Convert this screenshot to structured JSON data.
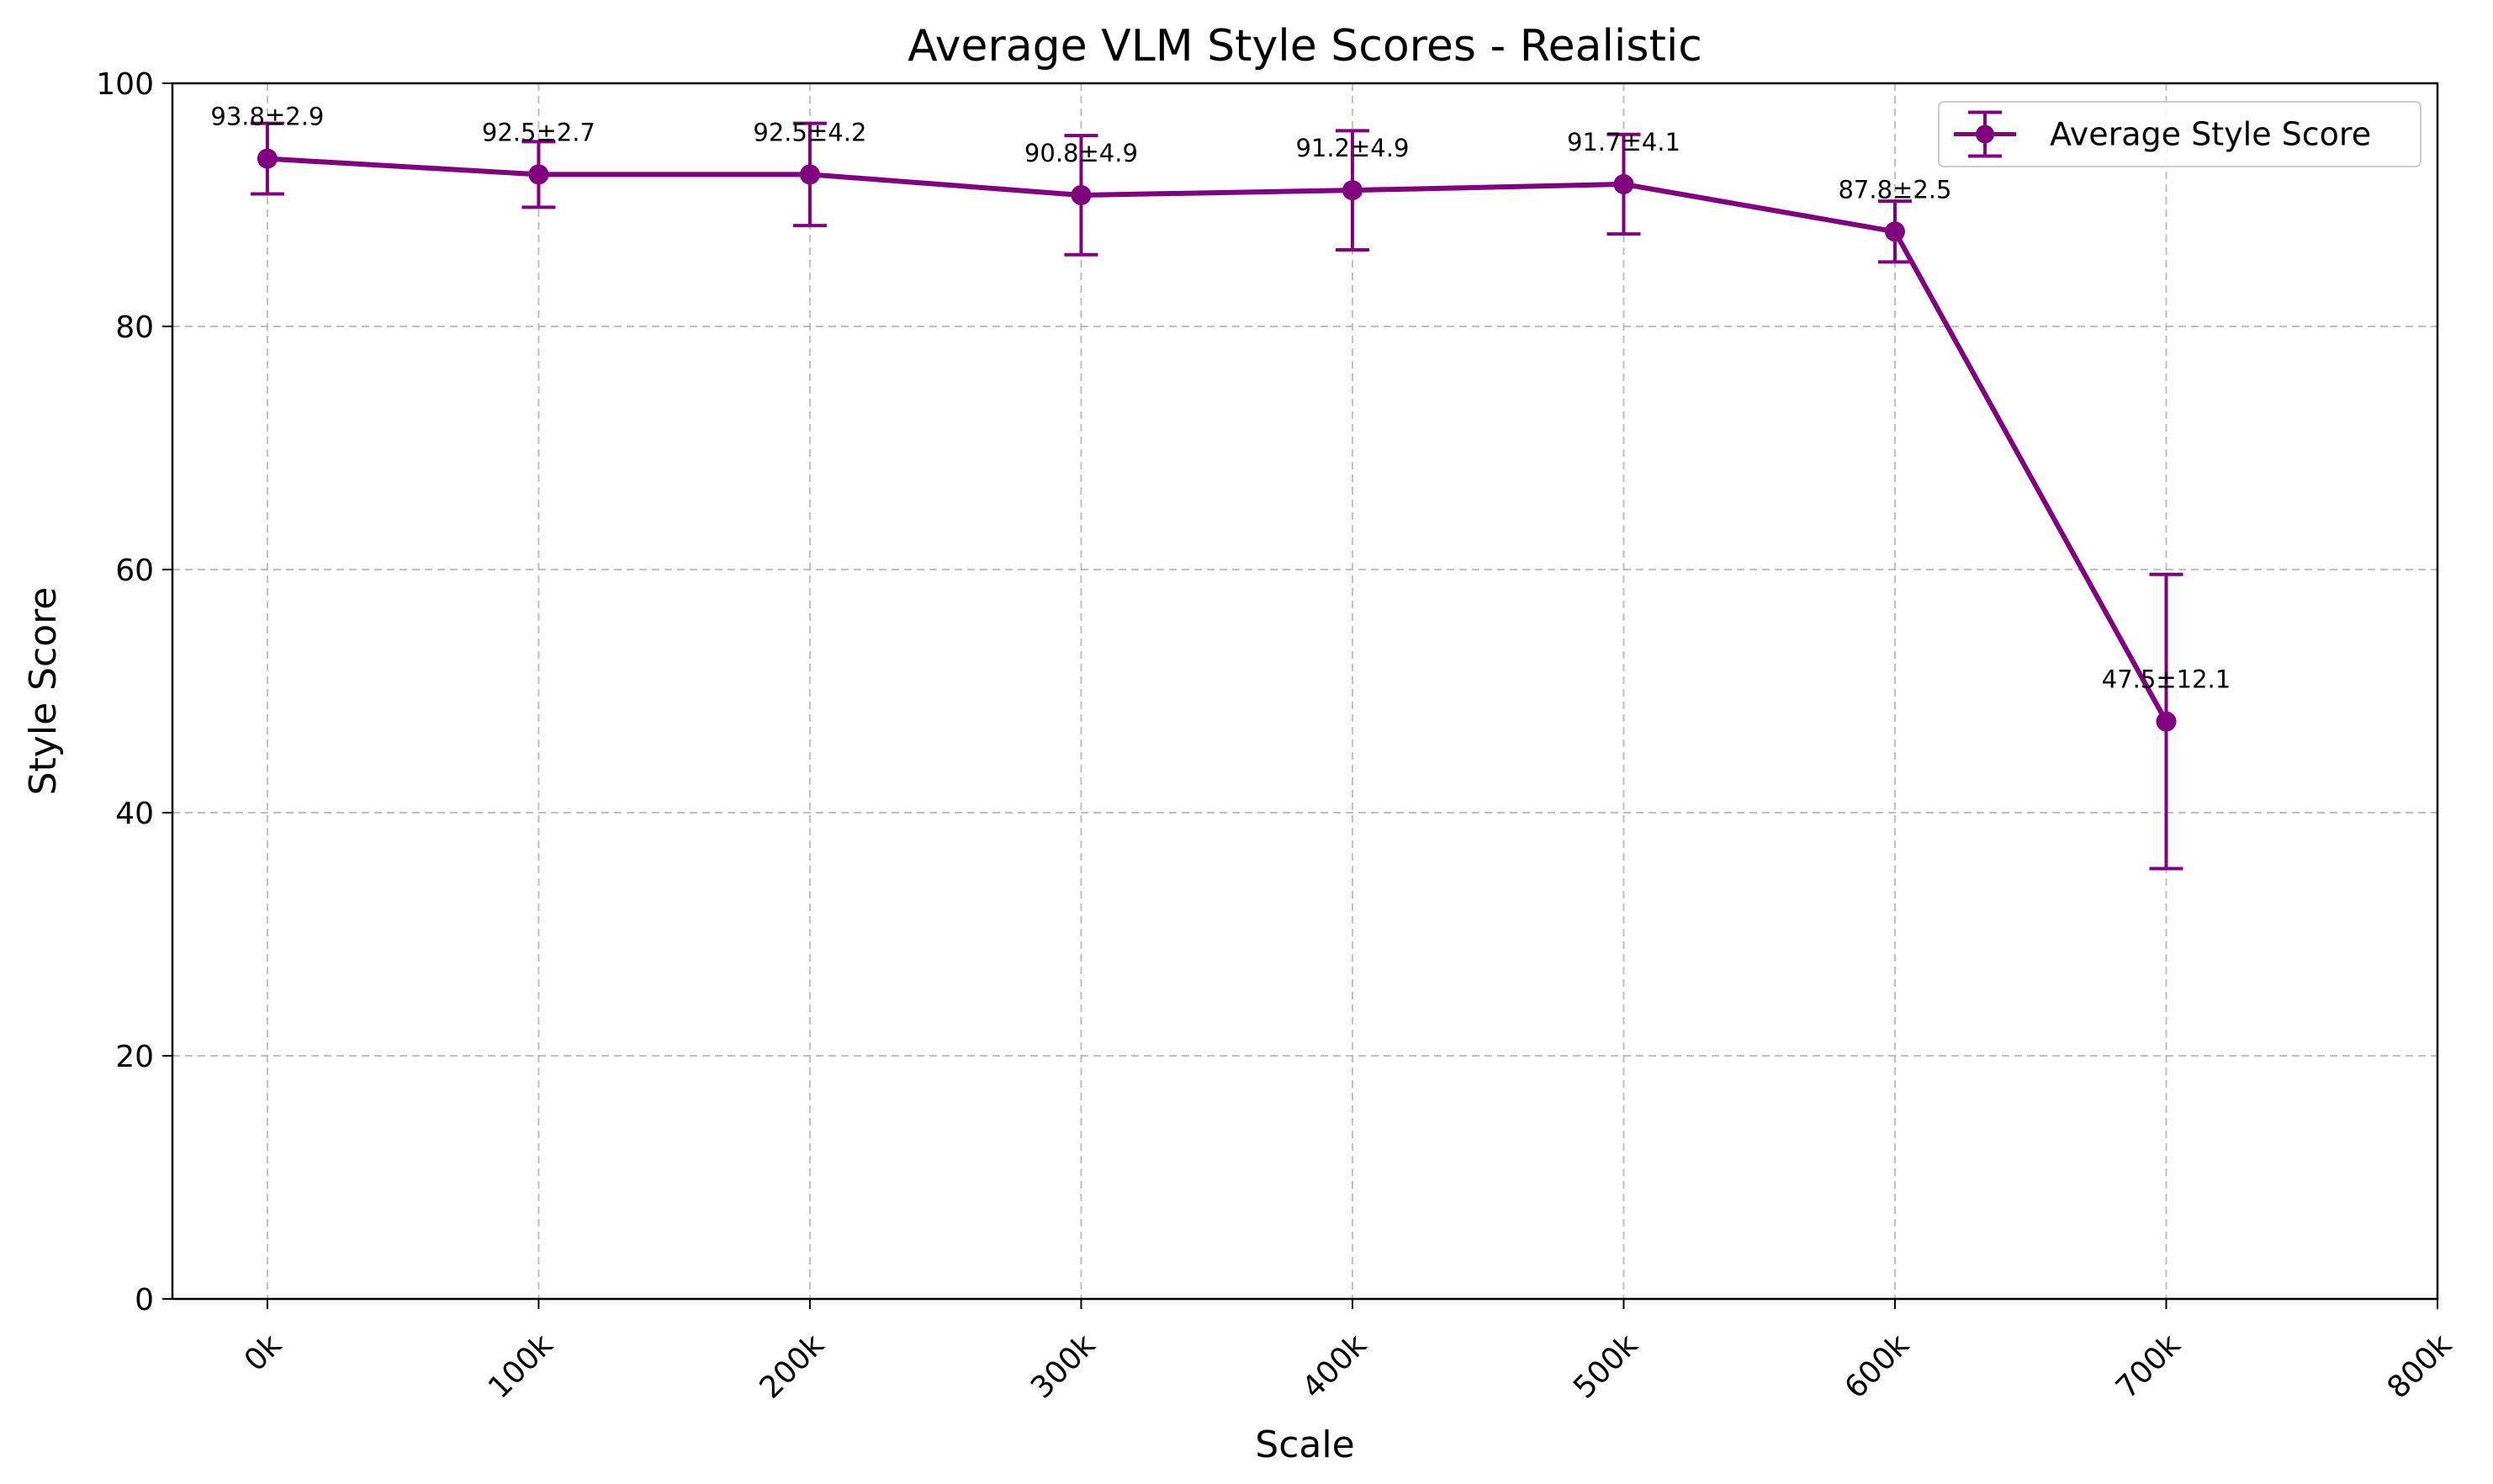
{
  "chart_data": {
    "type": "line",
    "title": "Average VLM Style Scores - Realistic",
    "xlabel": "Scale",
    "ylabel": "Style Score",
    "x": [
      0,
      100,
      200,
      300,
      400,
      500,
      600,
      700
    ],
    "x_tick_values": [
      0,
      100,
      200,
      300,
      400,
      500,
      600,
      700,
      800
    ],
    "x_tick_labels": [
      "0k",
      "100k",
      "200k",
      "300k",
      "400k",
      "500k",
      "600k",
      "700k",
      "800k"
    ],
    "xlim": [
      -35,
      800
    ],
    "ylim": [
      0,
      100
    ],
    "y_ticks": [
      0,
      20,
      40,
      60,
      80,
      100
    ],
    "y_tick_labels": [
      "0",
      "20",
      "40",
      "60",
      "80",
      "100"
    ],
    "grid": true,
    "legend_position": "top-right",
    "color": "#800080",
    "series": [
      {
        "name": "Average Style Score",
        "values": [
          93.8,
          92.5,
          92.5,
          90.8,
          91.2,
          91.7,
          87.8,
          47.5
        ],
        "errors": [
          2.9,
          2.7,
          4.2,
          4.9,
          4.9,
          4.1,
          2.5,
          12.1
        ],
        "labels": [
          "93.8±2.9",
          "92.5±2.7",
          "92.5±4.2",
          "90.8±4.9",
          "91.2±4.9",
          "91.7±4.1",
          "87.8±2.5",
          "47.5±12.1"
        ]
      }
    ]
  }
}
